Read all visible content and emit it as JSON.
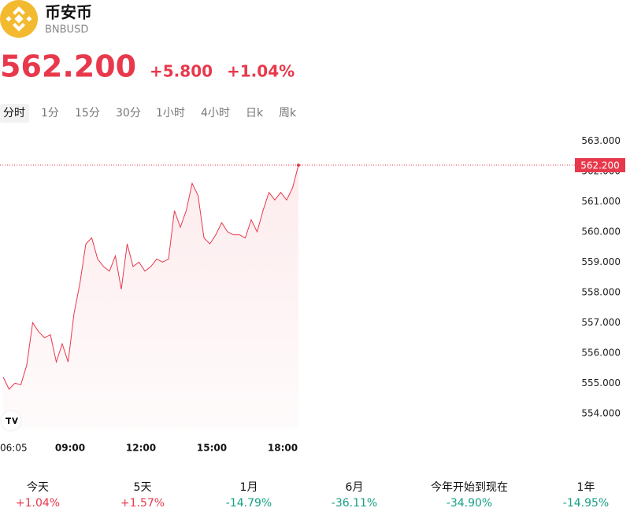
{
  "header": {
    "name": "币安币",
    "symbol": "BNBUSD",
    "change": "+5.800",
    "change_pct": "+1.04%"
  },
  "tabs": [
    "分时",
    "1分",
    "15分",
    "30分",
    "1小时",
    "4小时",
    "日k",
    "周k"
  ],
  "chart_data": {
    "type": "area",
    "color": "#e8394c",
    "last_price": {
      "value": 562.2,
      "label": "562.200"
    },
    "x": [
      "06:10",
      "06:25",
      "06:40",
      "06:55",
      "07:10",
      "07:25",
      "07:40",
      "07:55",
      "08:10",
      "08:25",
      "08:40",
      "08:55",
      "09:10",
      "09:25",
      "09:40",
      "09:55",
      "10:10",
      "10:25",
      "10:40",
      "10:55",
      "11:10",
      "11:25",
      "11:40",
      "11:55",
      "12:10",
      "12:25",
      "12:40",
      "12:55",
      "13:10",
      "13:25",
      "13:40",
      "13:55",
      "14:10",
      "14:25",
      "14:40",
      "14:55",
      "15:10",
      "15:25",
      "15:40",
      "15:55",
      "16:10",
      "16:25",
      "16:40",
      "16:55",
      "17:10",
      "17:25",
      "17:40",
      "17:55",
      "18:10",
      "18:25",
      "18:40"
    ],
    "values": [
      555.2,
      554.8,
      555.0,
      554.95,
      555.6,
      557.0,
      556.7,
      556.5,
      556.6,
      555.7,
      556.3,
      555.7,
      557.3,
      558.3,
      559.6,
      559.8,
      559.1,
      558.85,
      558.7,
      559.2,
      558.1,
      559.6,
      558.85,
      559.0,
      558.7,
      558.85,
      559.1,
      559.0,
      559.1,
      560.7,
      560.15,
      560.7,
      561.6,
      561.2,
      559.8,
      559.6,
      559.9,
      560.3,
      560.0,
      559.9,
      559.9,
      559.8,
      560.4,
      560.0,
      560.7,
      561.3,
      561.05,
      561.3,
      561.05,
      561.45,
      562.2
    ],
    "xlim": [
      "06:02",
      "18:40"
    ],
    "xticks": [
      "06:05",
      "09:00",
      "12:00",
      "15:00",
      "18:00"
    ],
    "ylim": [
      553.5,
      563.5
    ],
    "yticks": [
      {
        "value": 554,
        "label": "554.000"
      },
      {
        "value": 555,
        "label": "555.000"
      },
      {
        "value": 556,
        "label": "556.000"
      },
      {
        "value": 557,
        "label": "557.000"
      },
      {
        "value": 558,
        "label": "558.000"
      },
      {
        "value": 559,
        "label": "559.000"
      },
      {
        "value": 560,
        "label": "560.000"
      },
      {
        "value": 561,
        "label": "561.000"
      },
      {
        "value": 562,
        "label": "562.000"
      },
      {
        "value": 563,
        "label": "563.000"
      }
    ]
  },
  "performance": [
    {
      "label": "今天",
      "value": "+1.04%",
      "color": "#e8394c"
    },
    {
      "label": "5天",
      "value": "+1.57%",
      "color": "#e8394c"
    },
    {
      "label": "1月",
      "value": "-14.79%",
      "color": "#16a085"
    },
    {
      "label": "6月",
      "value": "-36.11%",
      "color": "#16a085"
    },
    {
      "label": "今年开始到现在",
      "value": "-34.90%",
      "color": "#16a085"
    },
    {
      "label": "1年",
      "value": "-14.95%",
      "color": "#16a085"
    }
  ]
}
